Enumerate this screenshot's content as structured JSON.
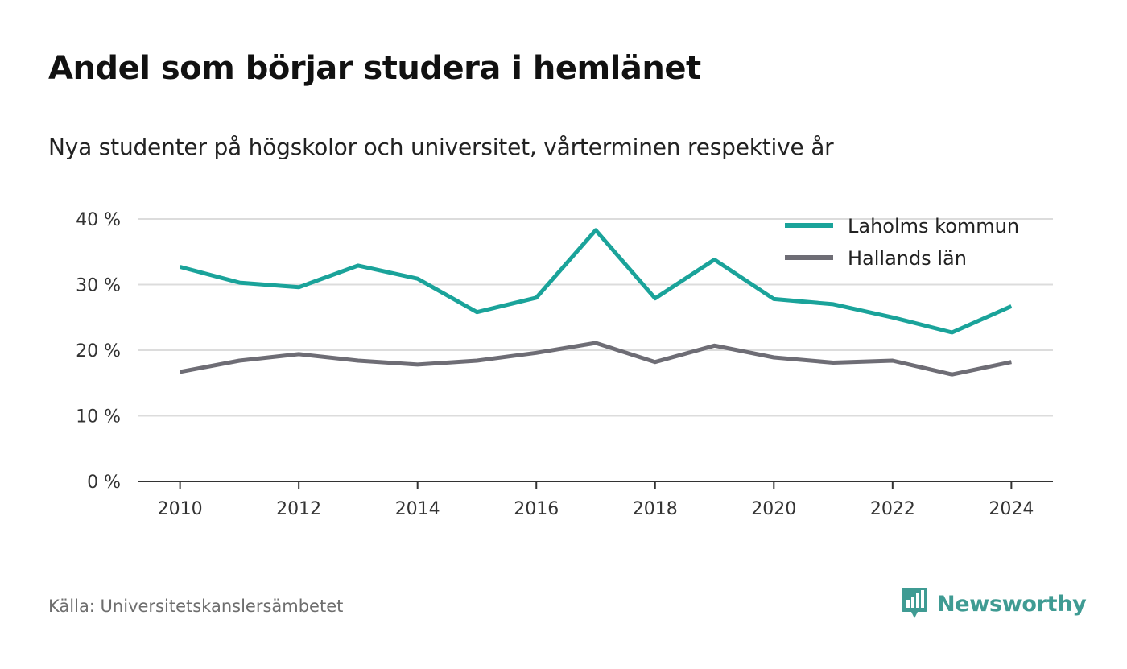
{
  "header": {
    "title": "Andel som börjar studera i hemlänet",
    "subtitle": "Nya studenter på högskolor och universitet, vårterminen respektive år"
  },
  "footer": {
    "source": "Källa: Universitetskanslersämbetet",
    "brand": "Newsworthy",
    "brand_icon": "newsworthy-logo-icon"
  },
  "colors": {
    "laholm": "#1aa39a",
    "halland": "#6e6d75",
    "grid": "#dcdcdc",
    "axis": "#333333",
    "brand": "#3f9b93"
  },
  "chart_data": {
    "type": "line",
    "x": [
      2010,
      2011,
      2012,
      2013,
      2014,
      2015,
      2016,
      2017,
      2018,
      2019,
      2020,
      2021,
      2022,
      2023,
      2024
    ],
    "x_tick_labels": [
      "2010",
      "2012",
      "2014",
      "2016",
      "2018",
      "2020",
      "2022",
      "2024"
    ],
    "x_tick_values": [
      2010,
      2012,
      2014,
      2016,
      2018,
      2020,
      2022,
      2024
    ],
    "y_tick_values": [
      0,
      10,
      20,
      30,
      40
    ],
    "y_tick_labels": [
      "0 %",
      "10 %",
      "20 %",
      "30 %",
      "40 %"
    ],
    "ylim": [
      0,
      40
    ],
    "xlim": [
      2009.3,
      2024.7
    ],
    "grid": true,
    "legend_position": "top-right",
    "series": [
      {
        "name": "Laholms kommun",
        "color": "#1aa39a",
        "values": [
          32.7,
          30.3,
          29.6,
          32.9,
          30.9,
          25.8,
          28.0,
          38.3,
          27.9,
          33.8,
          27.8,
          27.0,
          25.0,
          22.7,
          26.7
        ]
      },
      {
        "name": "Hallands län",
        "color": "#6e6d75",
        "values": [
          16.7,
          18.4,
          19.4,
          18.4,
          17.8,
          18.4,
          19.6,
          21.1,
          18.2,
          20.7,
          18.9,
          18.1,
          18.4,
          16.3,
          18.2
        ]
      }
    ]
  }
}
